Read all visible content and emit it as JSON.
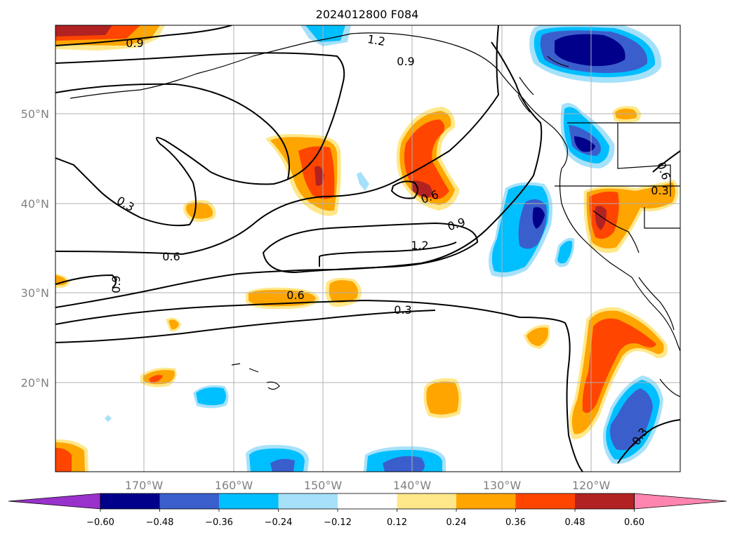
{
  "title": "2024012800 F084",
  "lat_labels": [
    "50°N",
    "40°N",
    "30°N",
    "20°N"
  ],
  "lon_labels": [
    "170°W",
    "160°W",
    "150°W",
    "140°W",
    "130°W",
    "120°W"
  ],
  "colorbar": {
    "ticks": [
      "−0.60",
      "−0.48",
      "−0.36",
      "−0.24",
      "−0.12",
      "0.12",
      "0.24",
      "0.36",
      "0.48",
      "0.60"
    ],
    "colors": [
      "#9932cc",
      "#00008b",
      "#3a5fcd",
      "#00bfff",
      "#a6e1fa",
      "#ffffff",
      "#ffe88a",
      "#ffa500",
      "#ff4500",
      "#b22222",
      "#ff85b0"
    ]
  },
  "contour_labels": [
    "0.9",
    "1.2",
    "0.9",
    "0.3",
    "0.6",
    "0.6",
    "0.9",
    "0.6",
    "1.2",
    "0.9",
    "0.6",
    "0.3",
    "0.3",
    "0.3"
  ]
}
